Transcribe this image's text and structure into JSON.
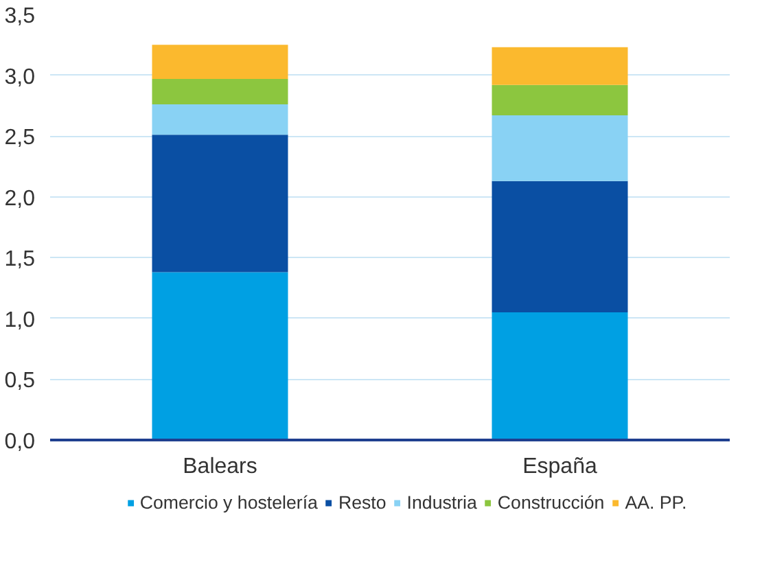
{
  "chart_data": {
    "type": "bar",
    "stacked": true,
    "categories": [
      "Balears",
      "España"
    ],
    "series": [
      {
        "name": "Comercio y hostelería",
        "color": "#00a0e3",
        "values": [
          1.38,
          1.05
        ]
      },
      {
        "name": "Resto",
        "color": "#0a4fa3",
        "values": [
          1.13,
          1.08
        ]
      },
      {
        "name": "Industria",
        "color": "#89d2f4",
        "values": [
          0.25,
          0.54
        ]
      },
      {
        "name": "Construcción",
        "color": "#8cc63f",
        "values": [
          0.21,
          0.25
        ]
      },
      {
        "name": "AA. PP.",
        "color": "#fbb92e",
        "values": [
          0.28,
          0.31
        ]
      }
    ],
    "ylim": [
      0,
      3.5
    ],
    "yticks": [
      {
        "value": 0,
        "label": "0,0"
      },
      {
        "value": 0.5,
        "label": "0,5"
      },
      {
        "value": 1,
        "label": "1,0"
      },
      {
        "value": 1.5,
        "label": "1,5"
      },
      {
        "value": 2,
        "label": "2,0"
      },
      {
        "value": 2.5,
        "label": "2,5"
      },
      {
        "value": 3,
        "label": "3,0"
      },
      {
        "value": 3.5,
        "label": "3,5"
      }
    ],
    "grid": "y",
    "legend": "bottom"
  }
}
